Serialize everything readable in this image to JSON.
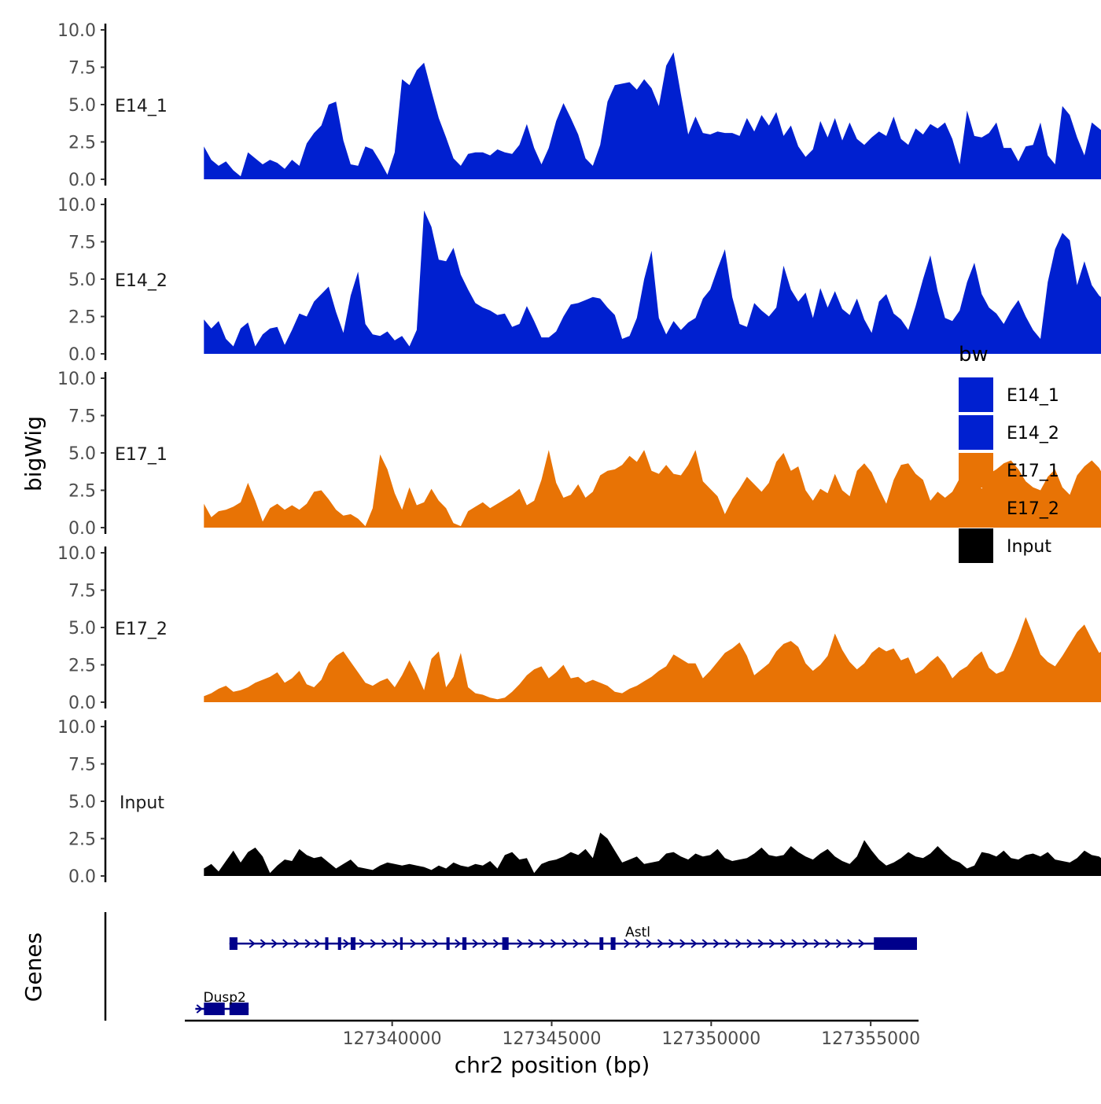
{
  "chart_data": {
    "type": "area",
    "y_axis_label": "bigWig",
    "x_axis_label": "chr2 position (bp)",
    "genes_axis_label": "Genes",
    "xlim": [
      127333500,
      127356500
    ],
    "x_ticks": [
      127340000,
      127345000,
      127350000,
      127355000
    ],
    "x_tick_labels": [
      "127340000",
      "127345000",
      "127350000",
      "127355000"
    ],
    "ylim": [
      0,
      10
    ],
    "y_ticks": [
      0,
      2.5,
      5,
      7.5,
      10
    ],
    "y_tick_labels": [
      "0.0",
      "2.5",
      "5.0",
      "7.5",
      "10.0"
    ],
    "x_start": 127334100,
    "x_step": 230,
    "legend": {
      "title": "bw",
      "position": "right",
      "entries": [
        {
          "label": "E14_1",
          "color": "#0020d0"
        },
        {
          "label": "E14_2",
          "color": "#0020d0"
        },
        {
          "label": "E17_1",
          "color": "#e87305"
        },
        {
          "label": "E17_2",
          "color": "#e87305"
        },
        {
          "label": "Input",
          "color": "#000000"
        }
      ]
    },
    "series": [
      {
        "name": "E14_1",
        "color": "#0020d0",
        "values": [
          2.2,
          1.3,
          0.9,
          1.2,
          0.6,
          0.2,
          1.8,
          1.4,
          1.0,
          1.3,
          1.1,
          0.7,
          1.3,
          0.9,
          2.4,
          3.1,
          3.6,
          5.0,
          5.2,
          2.6,
          1.0,
          0.9,
          2.2,
          2.0,
          1.2,
          0.3,
          1.8,
          6.7,
          6.3,
          7.3,
          7.8,
          5.9,
          4.1,
          2.8,
          1.4,
          0.9,
          1.7,
          1.8,
          1.8,
          1.6,
          2.0,
          1.8,
          1.7,
          2.3,
          3.7,
          2.1,
          1.0,
          2.1,
          3.9,
          5.1,
          4.1,
          3.0,
          1.4,
          0.9,
          2.3,
          5.2,
          6.3,
          6.4,
          6.5,
          6.0,
          6.7,
          6.1,
          4.9,
          7.6,
          8.5,
          5.7,
          3.0,
          4.2,
          3.1,
          3.0,
          3.2,
          3.1,
          3.1,
          2.9,
          4.1,
          3.2,
          4.3,
          3.6,
          4.5,
          2.9,
          3.6,
          2.2,
          1.5,
          2.0,
          3.9,
          2.8,
          4.1,
          2.6,
          3.8,
          2.7,
          2.3,
          2.8,
          3.2,
          2.9,
          4.2,
          2.7,
          2.3,
          3.4,
          3.0,
          3.7,
          3.4,
          3.8,
          2.7,
          1.0,
          4.6,
          2.9,
          2.8,
          3.1,
          3.8,
          2.1,
          2.1,
          1.2,
          2.2,
          2.3,
          3.8,
          1.6,
          1.0,
          4.9,
          4.3,
          2.8,
          1.6,
          3.8,
          3.4,
          3.0,
          3.9,
          2.5,
          4.6,
          6.3,
          7.3,
          7.6,
          7.9,
          7.1,
          6.7,
          6.5,
          7.4,
          7.1,
          6.4,
          5.4,
          3.9,
          3.5,
          4.1,
          4.9,
          3.6,
          3.2,
          3.0,
          4.2,
          7.3,
          8.8,
          5.3,
          2.6,
          5.6,
          4.7,
          4.8,
          5.1,
          5.4,
          6.2,
          4.7,
          2.1,
          3.4,
          5.4,
          6.6,
          5.8,
          4.2,
          4.7,
          5.1,
          4.2,
          5.2,
          5.5,
          5.3,
          7.4,
          9.0,
          6.5,
          7.5,
          5.1,
          2.6
        ]
      },
      {
        "name": "E14_2",
        "color": "#0020d0",
        "values": [
          2.3,
          1.7,
          2.2,
          1.0,
          0.5,
          1.7,
          2.1,
          0.5,
          1.3,
          1.7,
          1.8,
          0.6,
          1.6,
          2.7,
          2.5,
          3.5,
          4.0,
          4.5,
          2.8,
          1.4,
          3.9,
          5.5,
          2.0,
          1.3,
          1.2,
          1.5,
          0.9,
          1.2,
          0.5,
          1.6,
          9.6,
          8.5,
          6.3,
          6.2,
          7.1,
          5.3,
          4.3,
          3.4,
          3.1,
          2.9,
          2.6,
          2.7,
          1.8,
          2.0,
          3.2,
          2.2,
          1.1,
          1.1,
          1.5,
          2.5,
          3.3,
          3.4,
          3.6,
          3.8,
          3.7,
          3.1,
          2.6,
          1.0,
          1.2,
          2.4,
          5.0,
          6.9,
          2.4,
          1.3,
          2.2,
          1.6,
          2.1,
          2.4,
          3.7,
          4.3,
          5.7,
          7.0,
          3.8,
          2.0,
          1.8,
          3.4,
          2.9,
          2.5,
          3.1,
          5.9,
          4.3,
          3.5,
          4.1,
          2.4,
          4.4,
          3.1,
          4.2,
          3.0,
          2.6,
          3.7,
          2.3,
          1.4,
          3.5,
          4.0,
          2.7,
          2.3,
          1.6,
          3.2,
          5.0,
          6.6,
          4.2,
          2.4,
          2.2,
          2.9,
          4.8,
          6.1,
          4.0,
          3.1,
          2.7,
          2.0,
          2.9,
          3.6,
          2.5,
          1.6,
          1.0,
          4.8,
          7.0,
          8.1,
          7.6,
          4.6,
          6.2,
          4.6,
          3.9,
          3.5,
          3.6,
          3.8,
          4.8,
          5.1,
          4.2,
          4.6,
          3.9,
          3.5,
          2.7,
          2.3,
          5.1,
          3.7,
          2.8,
          3.0,
          4.3,
          6.2,
          7.8,
          4.8,
          3.5,
          2.8,
          2.2,
          3.2,
          3.6,
          2.7,
          4.4,
          4.2,
          4.2,
          4.3,
          4.5,
          6.0,
          6.3,
          7.2,
          7.9,
          7.4,
          9.1,
          7.7,
          7.5,
          7.8,
          7.8,
          7.6
        ]
      },
      {
        "name": "E17_1",
        "color": "#e87305",
        "values": [
          1.6,
          0.7,
          1.1,
          1.2,
          1.4,
          1.7,
          3.0,
          1.8,
          0.4,
          1.3,
          1.6,
          1.2,
          1.5,
          1.2,
          1.6,
          2.4,
          2.5,
          1.9,
          1.2,
          0.8,
          0.9,
          0.6,
          0.1,
          1.3,
          4.9,
          3.9,
          2.3,
          1.2,
          2.7,
          1.5,
          1.7,
          2.6,
          1.8,
          1.3,
          0.3,
          0.1,
          1.1,
          1.4,
          1.7,
          1.3,
          1.6,
          1.9,
          2.2,
          2.6,
          1.5,
          1.8,
          3.2,
          5.2,
          3.0,
          2.0,
          2.2,
          2.9,
          2.0,
          2.4,
          3.5,
          3.8,
          3.9,
          4.2,
          4.8,
          4.4,
          5.2,
          3.8,
          3.6,
          4.2,
          3.6,
          3.5,
          4.2,
          5.2,
          3.1,
          2.6,
          2.1,
          0.9,
          1.9,
          2.6,
          3.4,
          2.9,
          2.4,
          3.0,
          4.4,
          5.0,
          3.8,
          4.1,
          2.5,
          1.8,
          2.6,
          2.3,
          3.6,
          2.5,
          2.1,
          3.8,
          4.3,
          3.7,
          2.6,
          1.6,
          3.2,
          4.2,
          4.3,
          3.6,
          3.2,
          1.8,
          2.4,
          2.0,
          2.4,
          3.3,
          4.5,
          3.4,
          2.6,
          3.6,
          3.9,
          4.3,
          4.5,
          3.9,
          3.1,
          2.7,
          2.5,
          3.4,
          3.9,
          2.7,
          2.2,
          3.5,
          4.1,
          4.5,
          4.0,
          3.1,
          3.8,
          4.3,
          3.5,
          3.1,
          2.9,
          3.7,
          3.9,
          2.7,
          2.3,
          3.1,
          4.4,
          3.0,
          2.8,
          3.7,
          5.2,
          5.4,
          4.7,
          3.4,
          1.9,
          2.6,
          3.2,
          4.0,
          6.5,
          5.3,
          3.0,
          5.0,
          4.6,
          1.8,
          3.7,
          5.6,
          3.2,
          2.7,
          3.9,
          5.1,
          4.6,
          3.8,
          4.8,
          4.1,
          1.6,
          6.4,
          6.0,
          5.7,
          6.5,
          5.3,
          1.3,
          4.1,
          4.9,
          5.3,
          4.5,
          2.1,
          0.1
        ]
      },
      {
        "name": "E17_2",
        "color": "#e87305",
        "values": [
          0.4,
          0.6,
          0.9,
          1.1,
          0.7,
          0.8,
          1.0,
          1.3,
          1.5,
          1.7,
          2.0,
          1.3,
          1.6,
          2.1,
          1.2,
          1.0,
          1.5,
          2.6,
          3.1,
          3.4,
          2.7,
          2.0,
          1.3,
          1.1,
          1.4,
          1.6,
          1.0,
          1.8,
          2.8,
          1.9,
          0.8,
          2.9,
          3.4,
          1.0,
          1.7,
          3.3,
          1.0,
          0.6,
          0.5,
          0.3,
          0.2,
          0.3,
          0.7,
          1.2,
          1.8,
          2.2,
          2.4,
          1.6,
          2.0,
          2.5,
          1.6,
          1.7,
          1.3,
          1.5,
          1.3,
          1.1,
          0.7,
          0.6,
          0.9,
          1.1,
          1.4,
          1.7,
          2.1,
          2.4,
          3.2,
          2.9,
          2.6,
          2.6,
          1.6,
          2.1,
          2.7,
          3.3,
          3.6,
          4.0,
          3.1,
          1.8,
          2.2,
          2.6,
          3.4,
          3.9,
          4.1,
          3.7,
          2.6,
          2.1,
          2.5,
          3.1,
          4.6,
          3.5,
          2.7,
          2.2,
          2.6,
          3.3,
          3.7,
          3.4,
          3.6,
          2.8,
          3.0,
          1.9,
          2.2,
          2.7,
          3.1,
          2.5,
          1.6,
          2.1,
          2.4,
          3.0,
          3.4,
          2.3,
          1.9,
          2.1,
          3.1,
          4.3,
          5.7,
          4.5,
          3.2,
          2.7,
          2.4,
          3.1,
          3.9,
          4.7,
          5.2,
          4.2,
          3.3,
          3.6,
          4.6,
          4.9,
          3.9,
          3.6,
          4.4,
          5.0,
          6.5,
          5.9,
          4.1,
          2.8,
          2.3,
          1.8,
          2.3,
          2.7,
          2.2,
          4.3,
          5.2,
          5.1,
          4.3,
          4.6,
          3.8,
          3.5,
          3.0,
          2.2,
          2.9,
          3.6,
          4.1,
          3.3,
          2.6,
          2.4,
          1.8,
          2.6,
          3.9,
          4.5,
          4.3,
          3.8,
          4.4,
          5.8,
          4.7,
          2.6,
          4.7,
          5.5,
          3.3
        ]
      },
      {
        "name": "Input",
        "color": "#000000",
        "values": [
          0.5,
          0.8,
          0.3,
          1.0,
          1.7,
          0.9,
          1.6,
          1.9,
          1.3,
          0.2,
          0.7,
          1.1,
          1.0,
          1.8,
          1.4,
          1.2,
          1.3,
          0.9,
          0.5,
          0.8,
          1.1,
          0.6,
          0.5,
          0.4,
          0.7,
          0.9,
          0.8,
          0.7,
          0.8,
          0.7,
          0.6,
          0.4,
          0.7,
          0.5,
          0.9,
          0.7,
          0.6,
          0.8,
          0.7,
          1.0,
          0.5,
          1.4,
          1.6,
          1.1,
          1.2,
          0.2,
          0.8,
          1.0,
          1.1,
          1.3,
          1.6,
          1.4,
          1.8,
          1.2,
          2.9,
          2.5,
          1.7,
          0.9,
          1.1,
          1.3,
          0.8,
          0.9,
          1.0,
          1.5,
          1.6,
          1.3,
          1.1,
          1.5,
          1.3,
          1.4,
          1.8,
          1.2,
          1.0,
          1.1,
          1.2,
          1.5,
          1.9,
          1.4,
          1.3,
          1.4,
          2.0,
          1.6,
          1.3,
          1.1,
          1.5,
          1.8,
          1.3,
          1.0,
          0.8,
          1.3,
          2.4,
          1.7,
          1.1,
          0.7,
          0.9,
          1.2,
          1.6,
          1.3,
          1.2,
          1.5,
          2.0,
          1.5,
          1.1,
          0.9,
          0.5,
          0.7,
          1.6,
          1.5,
          1.3,
          1.7,
          1.2,
          1.1,
          1.4,
          1.5,
          1.3,
          1.6,
          1.1,
          1.0,
          0.9,
          1.2,
          1.7,
          1.4,
          1.3,
          0.9,
          1.0,
          1.2,
          1.4,
          1.7,
          1.2,
          1.0,
          1.3,
          1.5,
          1.6,
          1.1,
          1.0,
          1.5,
          1.9,
          2.2,
          1.6,
          0.9,
          0.6,
          1.0,
          1.6,
          1.2,
          0.8,
          1.1,
          1.4,
          1.8,
          1.5,
          1.3,
          1.2,
          1.1,
          1.0,
          1.3,
          1.5,
          1.2,
          1.8,
          1.6,
          1.3,
          1.0,
          1.5,
          1.7,
          1.4,
          0.4
        ]
      }
    ],
    "genes": [
      {
        "name": "Astl",
        "strand": "+",
        "start": 127334900,
        "end": 127356450,
        "exons": [
          [
            127334900,
            127335150
          ],
          [
            127337900,
            127338000
          ],
          [
            127338300,
            127338400
          ],
          [
            127338700,
            127338850
          ],
          [
            127340250,
            127340330
          ],
          [
            127341700,
            127341800
          ],
          [
            127342200,
            127342330
          ],
          [
            127343450,
            127343650
          ],
          [
            127346500,
            127346620
          ],
          [
            127346850,
            127347000
          ],
          [
            127355100,
            127356450
          ]
        ],
        "arrows": [
          127335600,
          127335950,
          127336300,
          127336650,
          127337000,
          127337350,
          127337650,
          127338550,
          127339050,
          127339400,
          127339750,
          127340100,
          127340650,
          127341000,
          127341350,
          127342050,
          127342600,
          127342900,
          127343250,
          127344000,
          127344350,
          127344700,
          127345050,
          127345400,
          127345750,
          127346100,
          127347350,
          127347700,
          127348050,
          127348400,
          127348750,
          127349100,
          127349450,
          127349800,
          127350150,
          127350500,
          127350850,
          127351200,
          127351550,
          127351900,
          127352250,
          127352600,
          127352950,
          127353300,
          127353650,
          127354000,
          127354350,
          127354700
        ]
      },
      {
        "name": "Dusp2",
        "strand": "+",
        "start": 127333830,
        "end": 127335500,
        "exons": [
          [
            127334100,
            127334750
          ],
          [
            127334900,
            127335500
          ]
        ],
        "arrows": [
          127333950
        ]
      }
    ]
  }
}
